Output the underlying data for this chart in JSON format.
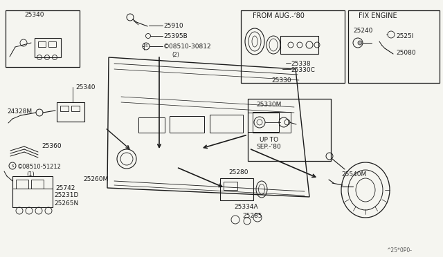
{
  "bg_color": "#f5f5f0",
  "line_color": "#1a1a1a",
  "fig_width": 6.4,
  "fig_height": 3.72,
  "labels": {
    "25340_top": "25340",
    "25340_mid": "25340",
    "24328M": "24328M",
    "25910": "25910",
    "25395B": "25395B",
    "08510_30812": "©08510-30812",
    "qty2": "(2)",
    "from_aug": "FROM AUG.-‘80",
    "25338": "25338",
    "25330C": "25330C",
    "25330": "25330",
    "fix_engine": "FIX ENGINE",
    "25240": "25240",
    "25250": "2525Ι",
    "25080": "25080",
    "25330M": "25330M",
    "up_to": "UP TO",
    "sep80": "SEP.-‘80",
    "25360": "25360",
    "08510_51212": "©08510-51212",
    "qty1": "(1)",
    "25260M": "25260M",
    "25742": "25742",
    "25231D": "25231D",
    "25265N": "25265N",
    "25280": "25280",
    "25334A": "25334A",
    "25285": "25285",
    "25540M": "25540M",
    "part_num": "^25*0P0-"
  }
}
